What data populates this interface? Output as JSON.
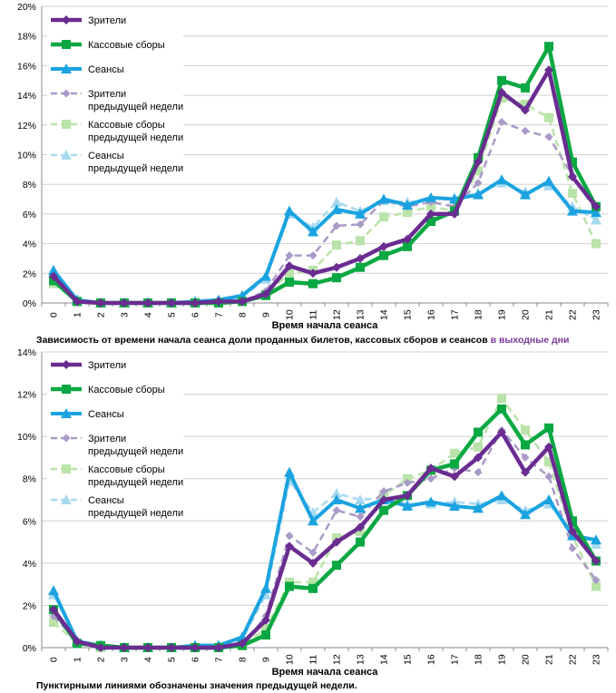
{
  "colors": {
    "viewers": "#6a2c91",
    "boxoffice": "#0aa842",
    "sessions": "#1aa3e0",
    "viewers_prev": "#a99ac8",
    "boxoffice_prev": "#b9e3a8",
    "sessions_prev": "#a7d9ef",
    "highlight": "#7a3a9a"
  },
  "legend": [
    {
      "key": "viewers",
      "lines": [
        "Зрители"
      ],
      "dashed": false,
      "marker": "diamond"
    },
    {
      "key": "boxoffice",
      "lines": [
        "Кассовые сборы"
      ],
      "dashed": false,
      "marker": "square"
    },
    {
      "key": "sessions",
      "lines": [
        "Сеансы"
      ],
      "dashed": false,
      "marker": "triangle"
    },
    {
      "key": "viewers_prev",
      "lines": [
        "Зрители",
        "предыдущей недели"
      ],
      "dashed": true,
      "marker": "diamond"
    },
    {
      "key": "boxoffice_prev",
      "lines": [
        "Кассовые сборы",
        "предыдущей недели"
      ],
      "dashed": true,
      "marker": "square"
    },
    {
      "key": "sessions_prev",
      "lines": [
        "Сеансы",
        "предыдущей недели"
      ],
      "dashed": true,
      "marker": "triangle"
    }
  ],
  "captions": {
    "middle_prefix": "Зависимость от времени начала сеанса доли проданных билетов, кассовых сборов и сеансов",
    "middle_highlight": "в выходные дни",
    "bottom": "Пунктирными линиями обозначены значения предыдущей недели."
  },
  "chart_data": [
    {
      "type": "line",
      "xlabel": "Время начала сеанса",
      "ylabel": "",
      "x": [
        0,
        1,
        2,
        3,
        4,
        5,
        6,
        7,
        8,
        9,
        10,
        11,
        12,
        13,
        14,
        15,
        16,
        17,
        18,
        19,
        20,
        21,
        22,
        23
      ],
      "ylim": [
        0,
        20
      ],
      "yticks": [
        "0%",
        "2%",
        "4%",
        "6%",
        "8%",
        "10%",
        "12%",
        "14%",
        "16%",
        "18%",
        "20%"
      ],
      "legend_position": "top-left",
      "series": [
        {
          "key": "viewers",
          "name": "Зрители",
          "values": [
            1.8,
            0.1,
            0,
            0,
            0,
            0,
            0,
            0.1,
            0.1,
            0.6,
            2.5,
            2,
            2.4,
            3,
            3.8,
            4.3,
            6,
            6,
            9.5,
            14.2,
            13,
            15.7,
            8.5,
            6.5
          ]
        },
        {
          "key": "boxoffice",
          "name": "Кассовые сборы",
          "values": [
            1.5,
            0.1,
            0,
            0,
            0,
            0,
            0,
            0,
            0.1,
            0.5,
            1.4,
            1.3,
            1.7,
            2.4,
            3.2,
            3.8,
            5.5,
            6.2,
            9.8,
            15,
            14.5,
            17.3,
            9.5,
            6.5
          ]
        },
        {
          "key": "sessions",
          "name": "Сеансы",
          "values": [
            2.2,
            0.2,
            0,
            0,
            0,
            0,
            0.1,
            0.2,
            0.5,
            1.8,
            6.2,
            4.8,
            6.3,
            6,
            7,
            6.6,
            7.1,
            7,
            7.3,
            8.3,
            7.3,
            8.2,
            6.2,
            6.1
          ]
        },
        {
          "key": "viewers_prev",
          "name": "Зрители предыдущей недели",
          "values": [
            1.6,
            0.1,
            0,
            0,
            0,
            0,
            0,
            0,
            0.1,
            0.8,
            3.2,
            3.2,
            5.2,
            5.3,
            6.9,
            6.5,
            6.8,
            6.5,
            8.1,
            12.2,
            11.6,
            11.2,
            8.6,
            6.2
          ]
        },
        {
          "key": "boxoffice_prev",
          "name": "Кассовые сборы предыдущей недели",
          "values": [
            1.3,
            0.1,
            0,
            0,
            0,
            0,
            0,
            0,
            0.1,
            0.6,
            2,
            2.2,
            3.9,
            4.2,
            5.8,
            6.1,
            6.5,
            6.2,
            8.9,
            13.8,
            13.4,
            12.5,
            7.4,
            4
          ]
        },
        {
          "key": "sessions_prev",
          "name": "Сеансы предыдущей недели",
          "values": [
            2,
            0.2,
            0,
            0,
            0,
            0,
            0.1,
            0.2,
            0.4,
            1.6,
            6,
            5.1,
            6.8,
            6.2,
            6.9,
            6.8,
            7,
            7.1,
            7.4,
            8.1,
            7.5,
            7.9,
            6.5,
            5.6
          ]
        }
      ]
    },
    {
      "type": "line",
      "xlabel": "Время начала сеанса",
      "ylabel": "",
      "x": [
        0,
        1,
        2,
        3,
        4,
        5,
        6,
        7,
        8,
        9,
        10,
        11,
        12,
        13,
        14,
        15,
        16,
        17,
        18,
        19,
        20,
        21,
        22,
        23
      ],
      "ylim": [
        0,
        14
      ],
      "yticks": [
        "0%",
        "2%",
        "4%",
        "6%",
        "8%",
        "10%",
        "12%",
        "14%"
      ],
      "legend_position": "top-left",
      "series": [
        {
          "key": "viewers",
          "name": "Зрители",
          "values": [
            1.8,
            0.3,
            0,
            0,
            0,
            0,
            0,
            0,
            0.2,
            1.3,
            4.8,
            4,
            5,
            5.7,
            7,
            7.2,
            8.5,
            8.1,
            9,
            10.2,
            8.3,
            9.5,
            5.5,
            4.1
          ]
        },
        {
          "key": "boxoffice",
          "name": "Кассовые сборы",
          "values": [
            1.8,
            0.2,
            0.1,
            0,
            0,
            0,
            0,
            0,
            0.1,
            0.6,
            2.9,
            2.8,
            3.9,
            5,
            6.5,
            7.2,
            8.4,
            8.7,
            10.2,
            11.3,
            9.6,
            10.4,
            6,
            4.1
          ]
        },
        {
          "key": "sessions",
          "name": "Сеансы",
          "values": [
            2.7,
            0.3,
            0.1,
            0,
            0,
            0,
            0.1,
            0.1,
            0.5,
            2.8,
            8.3,
            6,
            7,
            6.6,
            7,
            6.7,
            6.9,
            6.7,
            6.6,
            7.2,
            6.3,
            7,
            5.3,
            5.1
          ]
        },
        {
          "key": "viewers_prev",
          "name": "Зрители предыдущей недели",
          "values": [
            1.5,
            0.3,
            0,
            0,
            0,
            0,
            0,
            0,
            0.1,
            1.5,
            5.3,
            4.5,
            6.5,
            6.2,
            7.4,
            7.8,
            8,
            8.5,
            8.3,
            10.3,
            9,
            8.1,
            4.7,
            3.2
          ]
        },
        {
          "key": "boxoffice_prev",
          "name": "Кассовые сборы предыдущей недели",
          "values": [
            1.2,
            0.2,
            0,
            0,
            0,
            0,
            0,
            0,
            0.1,
            0.9,
            3.1,
            3.1,
            5.2,
            5.5,
            7.2,
            8,
            8.4,
            9.2,
            9.5,
            11.8,
            10.3,
            8.8,
            5.3,
            2.9
          ]
        },
        {
          "key": "sessions_prev",
          "name": "Сеансы предыдущей недели",
          "values": [
            2.5,
            0.3,
            0.1,
            0,
            0,
            0,
            0.1,
            0.1,
            0.4,
            2.5,
            7.9,
            6.4,
            7.3,
            7,
            7.1,
            6.8,
            6.8,
            6.9,
            6.8,
            7,
            6.5,
            6.8,
            5.5,
            4.9
          ]
        }
      ]
    }
  ]
}
